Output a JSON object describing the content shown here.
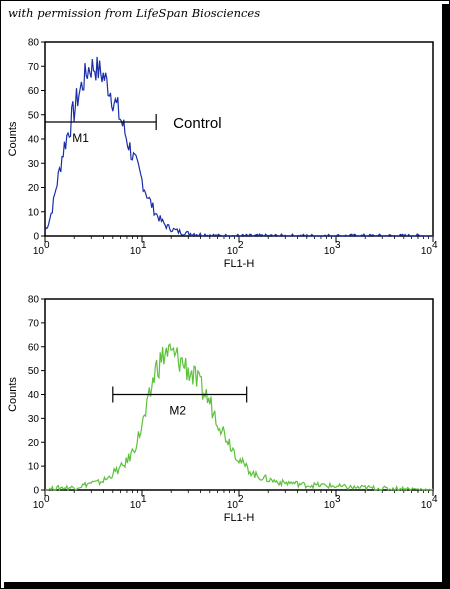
{
  "credit": "with permission from LifeSpan Biosciences",
  "chart_data": [
    {
      "type": "line",
      "series_color": "#1a2ea8",
      "xlabel": "FL1-H",
      "ylabel": "Counts",
      "xscale": "log",
      "xlim": [
        1,
        10000
      ],
      "ylim": [
        0,
        80
      ],
      "y_ticks": [
        "0",
        "10",
        "20",
        "30",
        "40",
        "50",
        "60",
        "70",
        "80"
      ],
      "x_ticks": [
        {
          "base": "10",
          "exp": "0"
        },
        {
          "base": "10",
          "exp": "1"
        },
        {
          "base": "10",
          "exp": "2"
        },
        {
          "base": "10",
          "exp": "3"
        },
        {
          "base": "10",
          "exp": "4"
        }
      ],
      "series_label": "Control",
      "marker": {
        "label": "M1",
        "x_range": [
          1.0,
          14
        ],
        "y": 47
      },
      "series": [
        {
          "x": [
            1.0,
            1.1,
            1.2,
            1.3,
            1.4,
            1.5,
            1.6,
            1.8,
            2.0,
            2.2,
            2.5,
            2.8,
            3.2,
            3.6,
            4.0,
            4.5,
            5.0,
            5.6,
            6.3,
            7.0,
            8.0,
            9.0,
            10,
            11,
            12.5,
            14,
            16,
            18,
            20,
            23,
            26,
            30,
            35,
            40,
            50,
            60,
            80,
            100,
            150,
            200,
            300,
            1000,
            10000
          ],
          "values": [
            2,
            6,
            12,
            20,
            26,
            33,
            38,
            45,
            52,
            58,
            64,
            69,
            70,
            68,
            66,
            62,
            57,
            52,
            46,
            40,
            33,
            28,
            23,
            18,
            13,
            9,
            6,
            4,
            3,
            2,
            1.5,
            1,
            1,
            0.5,
            0.5,
            0,
            0,
            0,
            0,
            0,
            0,
            0,
            0
          ]
        }
      ]
    },
    {
      "type": "line",
      "series_color": "#5cc23a",
      "xlabel": "FL1-H",
      "ylabel": "Counts",
      "xscale": "log",
      "xlim": [
        1,
        10000
      ],
      "ylim": [
        0,
        80
      ],
      "y_ticks": [
        "0",
        "10",
        "20",
        "30",
        "40",
        "50",
        "60",
        "70",
        "80"
      ],
      "x_ticks": [
        {
          "base": "10",
          "exp": "0"
        },
        {
          "base": "10",
          "exp": "1"
        },
        {
          "base": "10",
          "exp": "2"
        },
        {
          "base": "10",
          "exp": "3"
        },
        {
          "base": "10",
          "exp": "4"
        }
      ],
      "marker": {
        "label": "M2",
        "x_range": [
          5,
          120
        ],
        "y": 40
      },
      "series": [
        {
          "x": [
            1.0,
            1.5,
            2.0,
            2.5,
            3.0,
            3.5,
            4.0,
            4.5,
            5.0,
            6.0,
            7.0,
            8.0,
            9.0,
            10,
            11,
            12,
            13,
            14,
            16,
            18,
            20,
            22,
            25,
            28,
            32,
            36,
            40,
            45,
            50,
            56,
            63,
            70,
            80,
            90,
            100,
            115,
            130,
            150,
            180,
            220,
            280,
            350,
            500,
            700,
            1000,
            1500,
            2000,
            3000,
            5000,
            10000
          ],
          "values": [
            0,
            1,
            1,
            2,
            3,
            3,
            4,
            5,
            7,
            9,
            12,
            16,
            21,
            27,
            32,
            39,
            46,
            51,
            55,
            58,
            57,
            56,
            54,
            52,
            49,
            46,
            43,
            40,
            37,
            32,
            28,
            24,
            20,
            16,
            13,
            10,
            8,
            6,
            5,
            4,
            3,
            3,
            2,
            2,
            1.5,
            1,
            1,
            0.5,
            0.5,
            0
          ]
        }
      ]
    }
  ]
}
